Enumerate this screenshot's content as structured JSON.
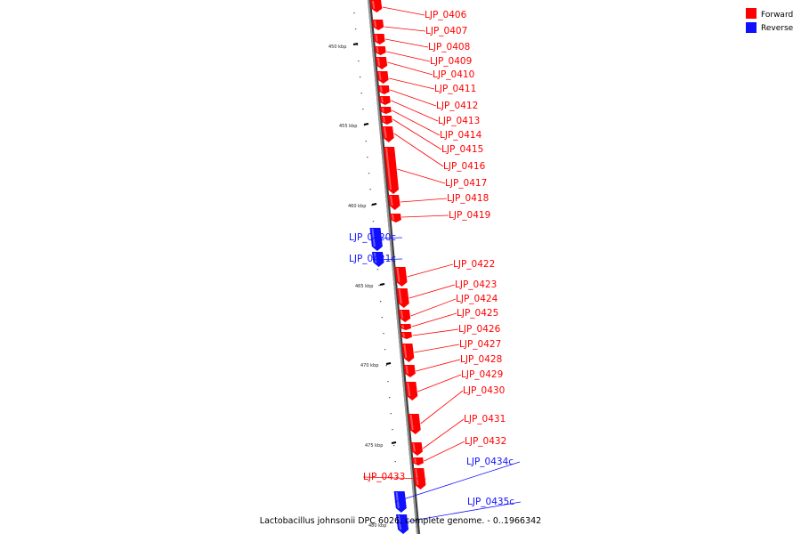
{
  "colors": {
    "forward": "#ff0000",
    "reverse": "#1010ff",
    "backbone": "#8c8c8c"
  },
  "legend": [
    {
      "label": "Forward",
      "strand": "forward"
    },
    {
      "label": "Reverse",
      "strand": "reverse"
    }
  ],
  "caption": "Lactobacillus johnsonii DPC 6026, complete genome. - 0..1966342",
  "scale_ticks": [
    {
      "label": "450 kbp"
    },
    {
      "label": "455 kbp"
    },
    {
      "label": "460 kbp"
    },
    {
      "label": "465 kbp"
    },
    {
      "label": "470 kbp"
    },
    {
      "label": "475 kbp"
    },
    {
      "label": "480 kbp"
    }
  ],
  "genes": [
    {
      "name": "LJP_0406",
      "strand": "forward"
    },
    {
      "name": "LJP_0407",
      "strand": "forward"
    },
    {
      "name": "LJP_0408",
      "strand": "forward"
    },
    {
      "name": "LJP_0409",
      "strand": "forward"
    },
    {
      "name": "LJP_0410",
      "strand": "forward"
    },
    {
      "name": "LJP_0411",
      "strand": "forward"
    },
    {
      "name": "LJP_0412",
      "strand": "forward"
    },
    {
      "name": "LJP_0413",
      "strand": "forward"
    },
    {
      "name": "LJP_0414",
      "strand": "forward"
    },
    {
      "name": "LJP_0415",
      "strand": "forward"
    },
    {
      "name": "LJP_0416",
      "strand": "forward"
    },
    {
      "name": "LJP_0417",
      "strand": "forward"
    },
    {
      "name": "LJP_0418",
      "strand": "forward"
    },
    {
      "name": "LJP_0419",
      "strand": "forward"
    },
    {
      "name": "LJP_0420c",
      "strand": "reverse"
    },
    {
      "name": "LJP_0421c",
      "strand": "reverse"
    },
    {
      "name": "LJP_0422",
      "strand": "forward"
    },
    {
      "name": "LJP_0423",
      "strand": "forward"
    },
    {
      "name": "LJP_0424",
      "strand": "forward"
    },
    {
      "name": "LJP_0425",
      "strand": "forward"
    },
    {
      "name": "LJP_0426",
      "strand": "forward"
    },
    {
      "name": "LJP_0427",
      "strand": "forward"
    },
    {
      "name": "LJP_0428",
      "strand": "forward"
    },
    {
      "name": "LJP_0429",
      "strand": "forward"
    },
    {
      "name": "LJP_0430",
      "strand": "forward"
    },
    {
      "name": "LJP_0431",
      "strand": "forward"
    },
    {
      "name": "LJP_0432",
      "strand": "forward"
    },
    {
      "name": "LJP_0433",
      "strand": "forward"
    },
    {
      "name": "LJP_0434c",
      "strand": "reverse"
    },
    {
      "name": "LJP_0435c",
      "strand": "reverse"
    }
  ]
}
